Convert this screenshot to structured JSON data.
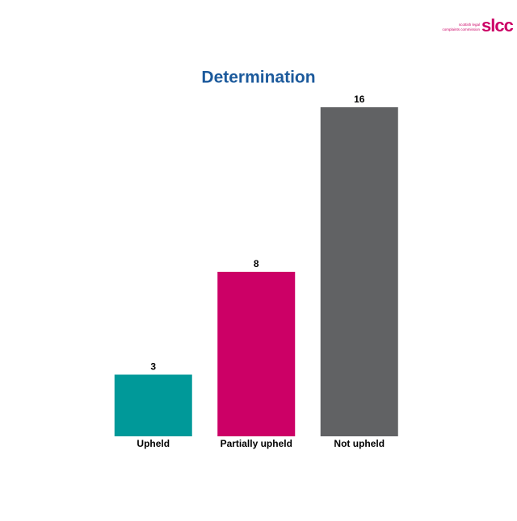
{
  "logo": {
    "mark": "slcc",
    "lines": [
      "scottish legal",
      "complaints commission"
    ]
  },
  "chart_data": {
    "type": "bar",
    "title": "Determination",
    "categories": [
      "Upheld",
      "Partially upheld",
      "Not upheld"
    ],
    "values": [
      3,
      8,
      16
    ],
    "colors": [
      "#009999",
      "#cc0066",
      "#616264"
    ]
  }
}
